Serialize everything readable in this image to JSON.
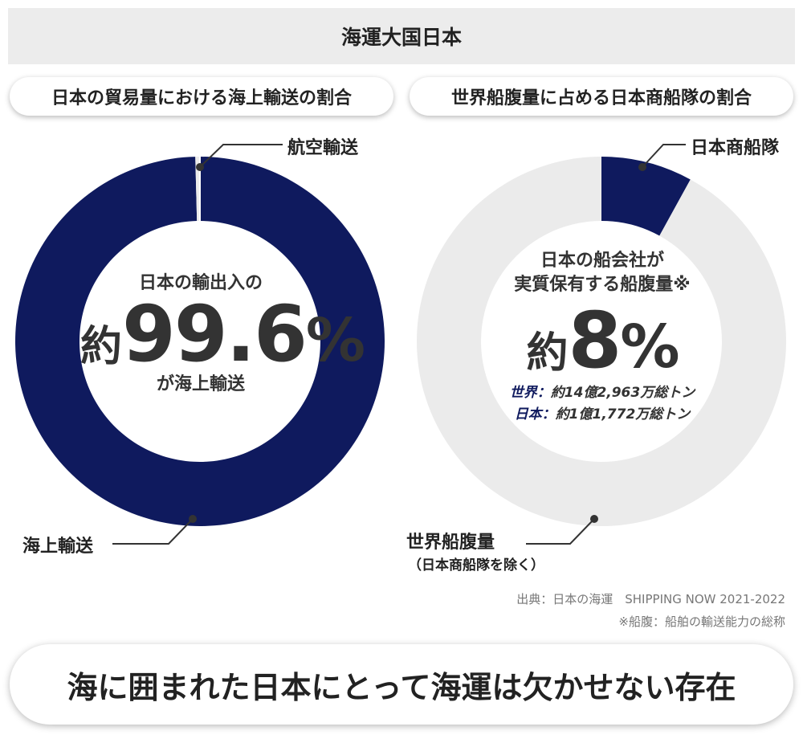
{
  "header": {
    "title": "海運大国日本"
  },
  "colors": {
    "navy": "#0f1a5e",
    "light_gray": "#ebebeb",
    "banner_bg": "#ececec"
  },
  "chart_data": [
    {
      "type": "pie",
      "title": "日本の貿易量における海上輸送の割合",
      "slices": [
        {
          "label": "海上輸送",
          "value": 99.6,
          "color": "#0f1a5e"
        },
        {
          "label": "航空輸送",
          "value": 0.4,
          "color": "#ebebeb"
        }
      ],
      "center": {
        "line1": "日本の輸出入の",
        "prefix": "約",
        "number": "99.6",
        "unit": "%",
        "line3": "が海上輸送"
      }
    },
    {
      "type": "pie",
      "title": "世界船腹量に占める日本商船隊の割合",
      "slices": [
        {
          "label": "日本商船隊",
          "value": 8,
          "color": "#0f1a5e"
        },
        {
          "label": "世界船腹量",
          "sublabel": "（日本商船隊を除く）",
          "value": 92,
          "color": "#ebebeb"
        }
      ],
      "center": {
        "line1": "日本の船会社が",
        "line2": "実質保有する船腹量※",
        "prefix": "約",
        "number": "8",
        "unit": "%",
        "stats": [
          {
            "label": "世界：",
            "value": "約14億2,963万総トン"
          },
          {
            "label": "日本：",
            "value": "約1億1,772万総トン"
          }
        ]
      }
    }
  ],
  "source": {
    "line1": "出典：日本の海運　SHIPPING NOW 2021-2022",
    "line2": "※船腹：船舶の輸送能力の総称"
  },
  "footer": {
    "text": "海に囲まれた日本にとって海運は欠かせない存在"
  }
}
